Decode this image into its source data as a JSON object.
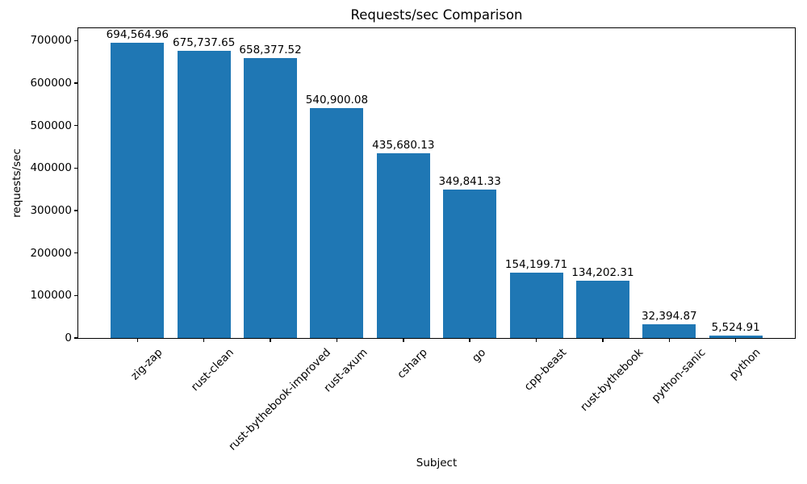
{
  "chart_data": {
    "type": "bar",
    "title": "Requests/sec Comparison",
    "xlabel": "Subject",
    "ylabel": "requests/sec",
    "categories": [
      "zig-zap",
      "rust-clean",
      "rust-bythebook-improved",
      "rust-axum",
      "csharp",
      "go",
      "cpp-beast",
      "rust-bythebook",
      "python-sanic",
      "python"
    ],
    "values": [
      694564.96,
      675737.65,
      658377.52,
      540900.08,
      435680.13,
      349841.33,
      154199.71,
      134202.31,
      32394.87,
      5524.91
    ],
    "value_labels": [
      "694,564.96",
      "675,737.65",
      "658,377.52",
      "540,900.08",
      "435,680.13",
      "349,841.33",
      "154,199.71",
      "134,202.31",
      "32,394.87",
      "5,524.91"
    ],
    "yticks": [
      0,
      100000,
      200000,
      300000,
      400000,
      500000,
      600000,
      700000
    ],
    "ylim": [
      0,
      729300
    ],
    "bar_color": "#1f77b4",
    "background_color": "#ffffff",
    "grid": false,
    "legend": null
  }
}
